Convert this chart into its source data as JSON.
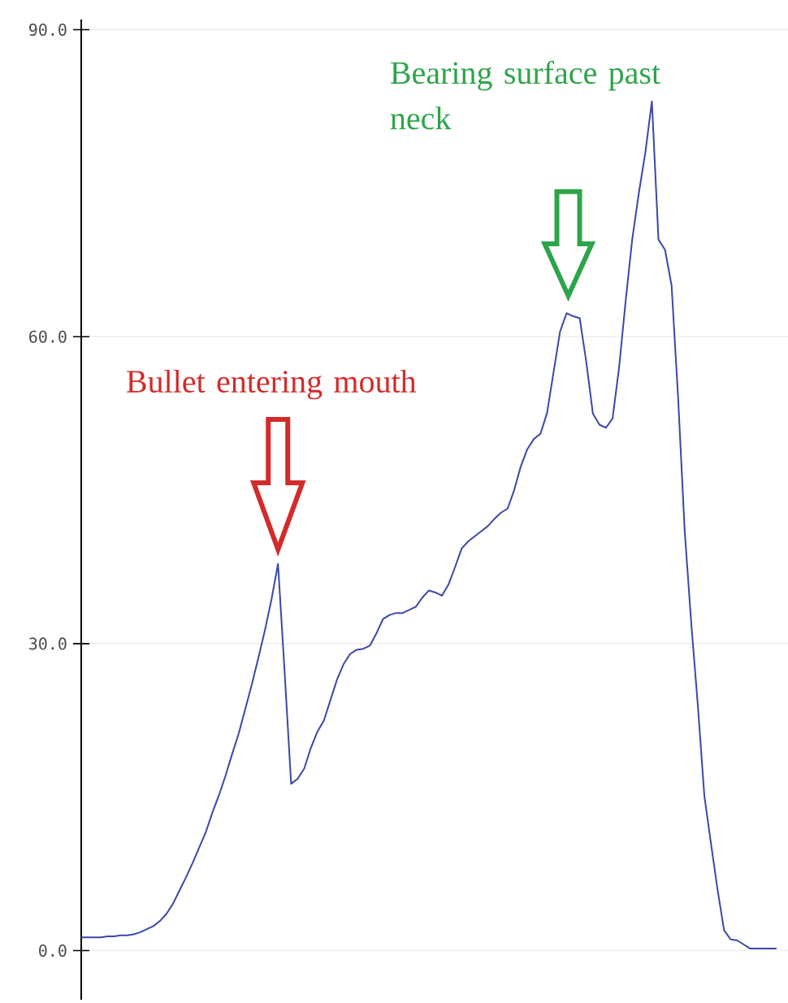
{
  "chart_data": {
    "type": "line",
    "categories": [
      null,
      null,
      null,
      null,
      null,
      null,
      null,
      null,
      null,
      null,
      null,
      null,
      null,
      null,
      null,
      null,
      null,
      null,
      null,
      null,
      null,
      null,
      null,
      null,
      null,
      null,
      null,
      null,
      null,
      null,
      null,
      null,
      null,
      null,
      null,
      null,
      null,
      null,
      null,
      null,
      null,
      null,
      null,
      null,
      null,
      null,
      null,
      null,
      null,
      null,
      null,
      null,
      null,
      null,
      null,
      null,
      null,
      null,
      null,
      null,
      null,
      null,
      null,
      null,
      null,
      null,
      null,
      null,
      null,
      null,
      null,
      null,
      null,
      null,
      null,
      null,
      null,
      null,
      null,
      null,
      null,
      null,
      null,
      null,
      null,
      null,
      null,
      null,
      null,
      null,
      null,
      null,
      null,
      null,
      null,
      null,
      null,
      null,
      null,
      null,
      null,
      null,
      null,
      null,
      null,
      null,
      null
    ],
    "series": [
      {
        "color": "#3b47a8",
        "values": [
          1.3,
          1.3,
          1.3,
          1.3,
          1.4,
          1.4,
          1.5,
          1.5,
          1.6,
          1.8,
          2.1,
          2.4,
          2.9,
          3.6,
          4.6,
          5.9,
          7.2,
          8.6,
          10.1,
          11.6,
          13.5,
          15.2,
          17.1,
          19.2,
          21.2,
          23.6,
          26.0,
          28.6,
          31.3,
          34.3,
          37.8,
          27.3,
          16.3,
          16.8,
          17.8,
          19.8,
          21.4,
          22.5,
          24.5,
          26.5,
          28.0,
          29.0,
          29.4,
          29.5,
          29.8,
          31.0,
          32.4,
          32.8,
          33.0,
          33.0,
          33.3,
          33.6,
          34.5,
          35.2,
          35.0,
          34.7,
          35.8,
          37.5,
          39.3,
          40.0,
          40.5,
          41.0,
          41.5,
          42.2,
          42.8,
          43.2,
          45.0,
          47.3,
          49.0,
          50.0,
          50.5,
          52.5,
          56.5,
          60.5,
          62.3,
          62.0,
          61.8,
          57.5,
          52.5,
          51.4,
          51.1,
          52.0,
          57.0,
          63.5,
          69.5,
          74.0,
          78.0,
          83.0,
          69.5,
          68.5,
          65.0,
          54.0,
          41.0,
          32.0,
          24.0,
          15.1,
          10.5,
          6.0,
          2.0,
          1.1,
          1.0,
          0.6,
          0.2,
          0.2,
          0.2,
          0.2,
          0.2
        ]
      }
    ],
    "ylim": [
      -4.8,
      91
    ],
    "yticks": [
      {
        "value": 0,
        "label": "0.0"
      },
      {
        "value": 30,
        "label": "30.0"
      },
      {
        "value": 60,
        "label": "60.0"
      },
      {
        "value": 90,
        "label": "90.0"
      }
    ],
    "grid": "y",
    "marker": "none",
    "line_style": "solid",
    "annotations": [
      "Bullet entering mouth",
      "Bearing surface past neck"
    ]
  }
}
